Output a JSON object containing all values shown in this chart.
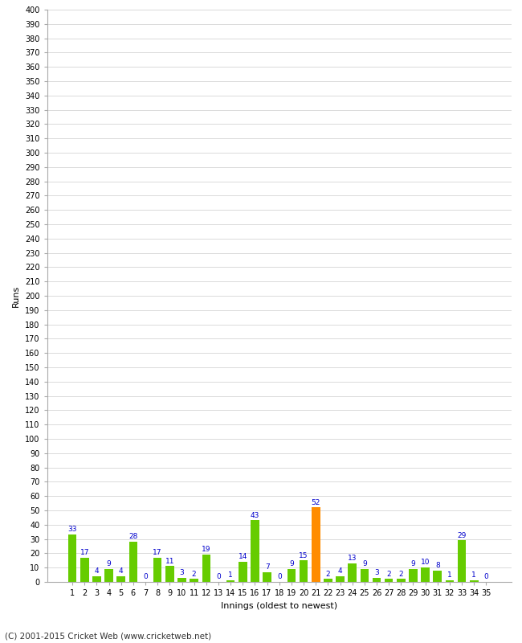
{
  "xlabel": "Innings (oldest to newest)",
  "ylabel": "Runs",
  "footer": "(C) 2001-2015 Cricket Web (www.cricketweb.net)",
  "innings": [
    1,
    2,
    3,
    4,
    5,
    6,
    7,
    8,
    9,
    10,
    11,
    12,
    13,
    14,
    15,
    16,
    17,
    18,
    19,
    20,
    21,
    22,
    23,
    24,
    25,
    26,
    27,
    28,
    29,
    30,
    31,
    32,
    33,
    34,
    35
  ],
  "values": [
    33,
    17,
    4,
    9,
    4,
    28,
    0,
    17,
    11,
    3,
    2,
    19,
    0,
    1,
    14,
    43,
    7,
    0,
    9,
    15,
    52,
    2,
    4,
    13,
    9,
    3,
    2,
    2,
    9,
    10,
    8,
    1,
    29,
    1,
    0
  ],
  "not_out_indices": [
    20
  ],
  "bar_color_normal": "#66cc00",
  "bar_color_not_out": "#ff8c00",
  "label_color": "#0000cc",
  "bg_color": "#ffffff",
  "grid_color": "#cccccc",
  "ylim": [
    0,
    400
  ],
  "yticks": [
    0,
    10,
    20,
    30,
    40,
    50,
    60,
    70,
    80,
    90,
    100,
    110,
    120,
    130,
    140,
    150,
    160,
    170,
    180,
    190,
    200,
    210,
    220,
    230,
    240,
    250,
    260,
    270,
    280,
    290,
    300,
    310,
    320,
    330,
    340,
    350,
    360,
    370,
    380,
    390,
    400
  ],
  "label_fontsize": 8,
  "tick_fontsize": 7,
  "bar_label_fontsize": 6.5
}
